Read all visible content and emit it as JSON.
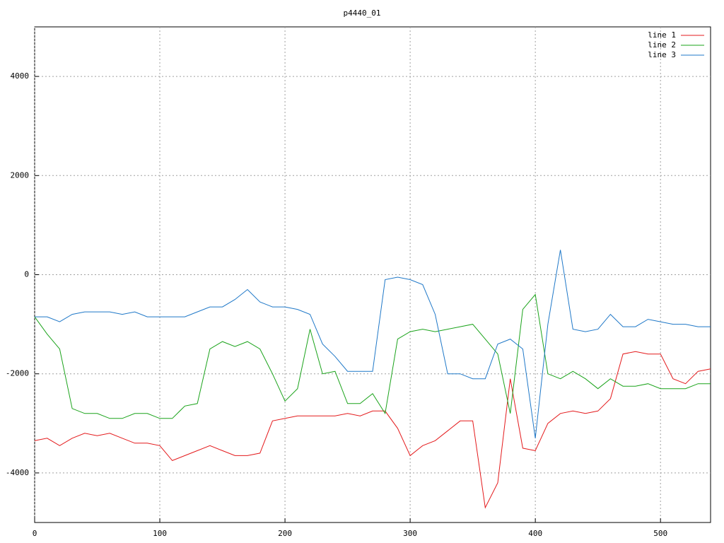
{
  "chart_data": {
    "type": "line",
    "title": "p4440_01",
    "x": [
      0,
      10,
      20,
      30,
      40,
      50,
      60,
      70,
      80,
      90,
      100,
      110,
      120,
      130,
      140,
      150,
      160,
      170,
      180,
      190,
      200,
      210,
      220,
      230,
      240,
      250,
      260,
      270,
      280,
      290,
      300,
      310,
      320,
      330,
      340,
      350,
      360,
      370,
      380,
      390,
      400,
      410,
      420,
      430,
      440,
      450,
      460,
      470,
      480,
      490,
      500,
      510,
      520,
      530,
      540
    ],
    "series": [
      {
        "name": "line 1",
        "color": "#e41a1c",
        "values": [
          -3350,
          -3300,
          -3450,
          -3300,
          -3200,
          -3250,
          -3200,
          -3300,
          -3400,
          -3400,
          -3450,
          -3750,
          -3650,
          -3550,
          -3450,
          -3550,
          -3650,
          -3650,
          -3600,
          -2950,
          -2900,
          -2850,
          -2850,
          -2850,
          -2850,
          -2800,
          -2850,
          -2750,
          -2750,
          -3100,
          -3650,
          -3450,
          -3350,
          -3150,
          -2950,
          -2950,
          -4700,
          -4200,
          -2100,
          -3500,
          -3550,
          -3000,
          -2800,
          -2750,
          -2800,
          -2750,
          -2500,
          -1600,
          -1550,
          -1600,
          -1600,
          -2100,
          -2200,
          -1950,
          -1900
        ]
      },
      {
        "name": "line 2",
        "color": "#1aa31a",
        "values": [
          -850,
          -1200,
          -1500,
          -2700,
          -2800,
          -2800,
          -2900,
          -2900,
          -2800,
          -2800,
          -2900,
          -2900,
          -2650,
          -2600,
          -1500,
          -1350,
          -1450,
          -1350,
          -1500,
          -2000,
          -2550,
          -2300,
          -1100,
          -2000,
          -1950,
          -2600,
          -2600,
          -2400,
          -2800,
          -1300,
          -1150,
          -1100,
          -1150,
          -1100,
          -1050,
          -1000,
          -1300,
          -1600,
          -2800,
          -700,
          -400,
          -2000,
          -2100,
          -1950,
          -2100,
          -2300,
          -2100,
          -2250,
          -2250,
          -2200,
          -2300,
          -2300,
          -2300,
          -2200,
          -2200
        ]
      },
      {
        "name": "line 3",
        "color": "#1f78c8",
        "values": [
          -850,
          -850,
          -950,
          -800,
          -750,
          -750,
          -750,
          -800,
          -750,
          -850,
          -850,
          -850,
          -850,
          -750,
          -650,
          -650,
          -500,
          -300,
          -550,
          -650,
          -650,
          -700,
          -800,
          -1400,
          -1650,
          -1950,
          -1950,
          -1950,
          -100,
          -50,
          -100,
          -200,
          -800,
          -2000,
          -2000,
          -2100,
          -2100,
          -1400,
          -1300,
          -1500,
          -3300,
          -1000,
          500,
          -1100,
          -1150,
          -1100,
          -800,
          -1050,
          -1050,
          -900,
          -950,
          -1000,
          -1000,
          -1050,
          -1050
        ]
      }
    ],
    "xlim": [
      0,
      540
    ],
    "xticks": [
      0,
      100,
      200,
      300,
      400,
      500
    ],
    "ylim": [
      -5000,
      5000
    ],
    "yticks": [
      -4000,
      -2000,
      0,
      2000,
      4000
    ],
    "grid": true,
    "legend": "top-right"
  }
}
